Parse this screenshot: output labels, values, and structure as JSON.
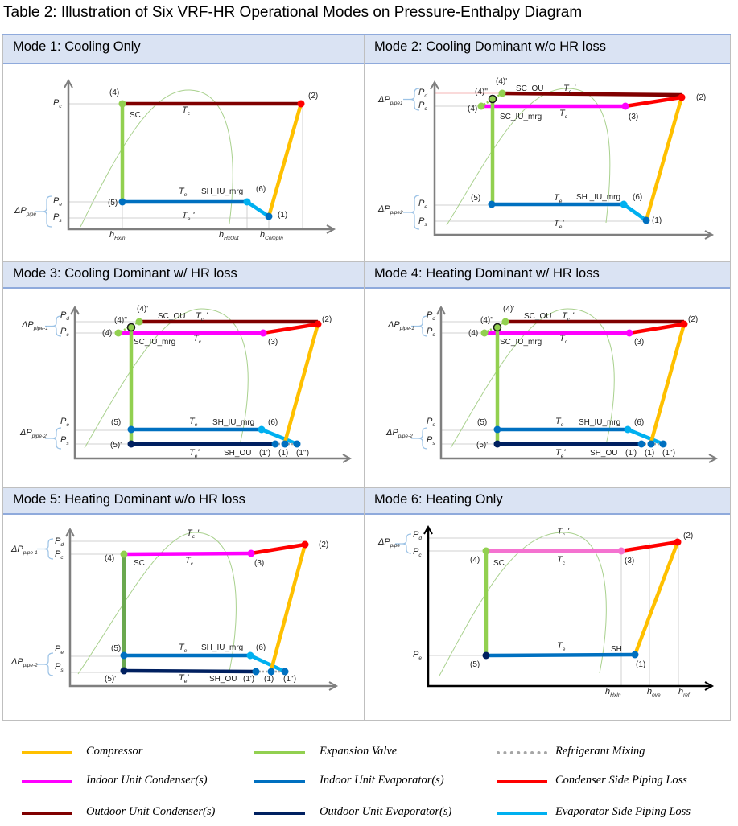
{
  "title": "Table 2: Illustration of Six VRF-HR Operational Modes on Pressure-Enthalpy Diagram",
  "colors": {
    "compressor": "#ffc000",
    "expansion": "#92d050",
    "expansion_dark": "#6aa84f",
    "mixing": "#a6a6a6",
    "iu_cond": "#ff00ff",
    "iu_cond_light": "#f472d0",
    "iu_evap": "#0070c0",
    "cond_loss": "#ff0000",
    "ou_cond": "#800000",
    "ou_evap": "#002060",
    "evap_loss": "#00b0f0",
    "axis": "#7f7f7f",
    "dome": "#a9d18e",
    "brace": "#9dc3e6",
    "header_bg": "#dae3f3"
  },
  "modes": [
    {
      "header": "Mode 1: Cooling Only",
      "labels": [
        {
          "t": "(4)"
        },
        {
          "t": "(2)"
        },
        {
          "t": "SC"
        },
        {
          "t": "T",
          "sub": "c"
        },
        {
          "t": "T",
          "sub": "e"
        },
        {
          "t": "SH_IU_mrg"
        },
        {
          "t": "(6)"
        },
        {
          "t": "(5)"
        },
        {
          "t": "(1)"
        },
        {
          "t": "T",
          "sub": "e",
          "s": " '"
        },
        {
          "t": "P",
          "sub": "c"
        },
        {
          "t": "P",
          "sub": "e"
        },
        {
          "t": "P",
          "sub": "s"
        },
        {
          "t": "ΔP",
          "sub": "pipe"
        },
        {
          "t": "h",
          "sub": "HxIn"
        },
        {
          "t": "h",
          "sub": "HxOut"
        },
        {
          "t": "h",
          "sub": "CompIn"
        }
      ]
    },
    {
      "header": "Mode 2: Cooling Dominant w/o HR loss",
      "labels": [
        {
          "t": "(4)'"
        },
        {
          "t": "(4)''"
        },
        {
          "t": "SC_OU"
        },
        {
          "t": "T",
          "sub": "c",
          "s": " '"
        },
        {
          "t": "(4)"
        },
        {
          "t": "SC_IU_mrg"
        },
        {
          "t": "T",
          "sub": "c"
        },
        {
          "t": "(3)"
        },
        {
          "t": "(2)"
        },
        {
          "t": "(5)"
        },
        {
          "t": "T",
          "sub": "e"
        },
        {
          "t": "SH _IU_mrg"
        },
        {
          "t": "(6)"
        },
        {
          "t": "(1)"
        },
        {
          "t": "T",
          "sub": "e",
          "s": "'"
        },
        {
          "t": "P",
          "sub": "d"
        },
        {
          "t": "P",
          "sub": "c"
        },
        {
          "t": "P",
          "sub": "e"
        },
        {
          "t": "P",
          "sub": "s"
        },
        {
          "t": "ΔP",
          "sub": "pipe1"
        },
        {
          "t": "ΔP",
          "sub": "pipe2"
        }
      ]
    },
    {
      "header": "Mode 3: Cooling Dominant w/ HR loss",
      "labels": [
        {
          "t": "(4)'"
        },
        {
          "t": "(4)''"
        },
        {
          "t": "SC_OU"
        },
        {
          "t": "T",
          "sub": "c",
          "s": " '"
        },
        {
          "t": "(4)"
        },
        {
          "t": "SC_IU_mrg"
        },
        {
          "t": "T",
          "sub": "c"
        },
        {
          "t": "(3)"
        },
        {
          "t": "(2)"
        },
        {
          "t": "(5)"
        },
        {
          "t": "T",
          "sub": "e"
        },
        {
          "t": "SH_IU_mrg"
        },
        {
          "t": "(6)"
        },
        {
          "t": "(5)'"
        },
        {
          "t": "T",
          "sub": "e",
          "s": "'"
        },
        {
          "t": "SH_OU"
        },
        {
          "t": "(1')"
        },
        {
          "t": "(1)"
        },
        {
          "t": "(1'')"
        },
        {
          "t": "P",
          "sub": "d"
        },
        {
          "t": "P",
          "sub": "c"
        },
        {
          "t": "P",
          "sub": "e"
        },
        {
          "t": "P",
          "sub": "s"
        },
        {
          "t": "ΔP",
          "sub": "pipe-1"
        },
        {
          "t": "ΔP",
          "sub": "pipe-2"
        }
      ]
    },
    {
      "header": "Mode 4: Heating Dominant w/ HR loss",
      "labels": [
        {
          "t": "(4)'"
        },
        {
          "t": "(4)''"
        },
        {
          "t": "SC_OU"
        },
        {
          "t": "T",
          "sub": "c",
          "s": " '"
        },
        {
          "t": "(4)"
        },
        {
          "t": "SC_IU_mrg"
        },
        {
          "t": "T",
          "sub": "c"
        },
        {
          "t": "(3)"
        },
        {
          "t": "(2)"
        },
        {
          "t": "(5)"
        },
        {
          "t": "T",
          "sub": "e"
        },
        {
          "t": "SH_IU_mrg"
        },
        {
          "t": "(6)"
        },
        {
          "t": "(5)'"
        },
        {
          "t": "T",
          "sub": "e",
          "s": "'"
        },
        {
          "t": "SH_OU"
        },
        {
          "t": "(1')"
        },
        {
          "t": "(1)"
        },
        {
          "t": "(1'')"
        },
        {
          "t": "P",
          "sub": "d"
        },
        {
          "t": "P",
          "sub": "c"
        },
        {
          "t": "P",
          "sub": "e"
        },
        {
          "t": "P",
          "sub": "s"
        },
        {
          "t": "ΔP",
          "sub": "pipe-1"
        },
        {
          "t": "ΔP",
          "sub": "pipe-2"
        }
      ]
    },
    {
      "header": "Mode 5: Heating Dominant w/o HR loss",
      "labels": [
        {
          "t": "T",
          "sub": "c",
          "s": " '"
        },
        {
          "t": "(2)"
        },
        {
          "t": "(4)"
        },
        {
          "t": "SC"
        },
        {
          "t": "T",
          "sub": "c"
        },
        {
          "t": "(3)"
        },
        {
          "t": "(5)"
        },
        {
          "t": "T",
          "sub": "e"
        },
        {
          "t": "SH_IU_mrg"
        },
        {
          "t": "(6)"
        },
        {
          "t": "(5)'"
        },
        {
          "t": "T",
          "sub": "e",
          "s": "'"
        },
        {
          "t": "SH_OU"
        },
        {
          "t": "(1')"
        },
        {
          "t": "(1)"
        },
        {
          "t": "(1'')"
        },
        {
          "t": "P",
          "sub": "d"
        },
        {
          "t": "P",
          "sub": "c"
        },
        {
          "t": "P",
          "sub": "e"
        },
        {
          "t": "P",
          "sub": "s"
        },
        {
          "t": "ΔP",
          "sub": "pipe-1"
        },
        {
          "t": "ΔP",
          "sub": "pipe-2"
        }
      ]
    },
    {
      "header": "Mode 6: Heating Only",
      "labels": [
        {
          "t": "T",
          "sub": "c",
          "s": " '"
        },
        {
          "t": "(2)"
        },
        {
          "t": "(4)"
        },
        {
          "t": "SC"
        },
        {
          "t": "T",
          "sub": "c"
        },
        {
          "t": "(3)"
        },
        {
          "t": "T",
          "sub": "e"
        },
        {
          "t": "SH"
        },
        {
          "t": "(5)"
        },
        {
          "t": "(1)"
        },
        {
          "t": "P",
          "sub": "d"
        },
        {
          "t": "P",
          "sub": "c"
        },
        {
          "t": "P",
          "sub": "e"
        },
        {
          "t": "ΔP",
          "sub": "pipe"
        },
        {
          "t": "h",
          "sub": "HxIn"
        },
        {
          "t": "h",
          "sub": "ove"
        },
        {
          "t": "h",
          "sub": "ref"
        }
      ]
    }
  ],
  "legend": [
    {
      "label": "Compressor",
      "color": "#ffc000",
      "style": "solid"
    },
    {
      "label": "Expansion Valve",
      "color": "#92d050",
      "style": "solid"
    },
    {
      "label": "Refrigerant Mixing",
      "color": "#a6a6a6",
      "style": "dotted"
    },
    {
      "label": "Indoor Unit Condenser(s)",
      "color": "#ff00ff",
      "style": "solid"
    },
    {
      "label": "Indoor Unit Evaporator(s)",
      "color": "#0070c0",
      "style": "solid"
    },
    {
      "label": "Condenser Side Piping Loss",
      "color": "#ff0000",
      "style": "solid"
    },
    {
      "label": "Outdoor Unit Condenser(s)",
      "color": "#800000",
      "style": "solid"
    },
    {
      "label": "Outdoor Unit Evaporator(s)",
      "color": "#002060",
      "style": "solid"
    },
    {
      "label": "Evaporator Side Piping Loss",
      "color": "#00b0f0",
      "style": "solid"
    }
  ]
}
